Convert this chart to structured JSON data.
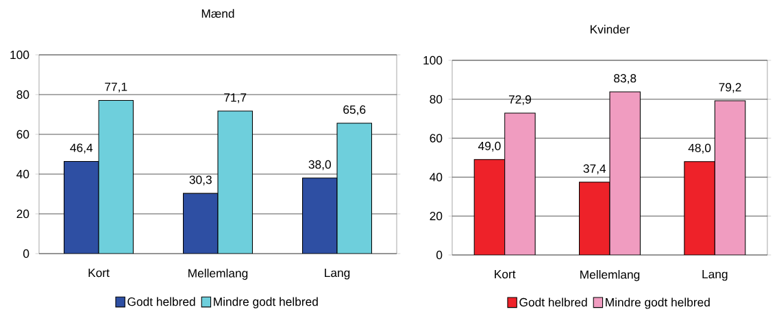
{
  "chart_data": [
    {
      "type": "bar",
      "title": "Mænd",
      "categories": [
        "Kort",
        "Mellemlang",
        "Lang"
      ],
      "series": [
        {
          "name": "Godt helbred",
          "color": "#2e4fa3",
          "values": [
            46.4,
            30.3,
            38.0
          ],
          "value_labels": [
            "46,4",
            "30,3",
            "38,0"
          ]
        },
        {
          "name": "Mindre godt helbred",
          "color": "#6ecfdc",
          "values": [
            77.1,
            71.7,
            65.6
          ],
          "value_labels": [
            "77,1",
            "71,7",
            "65,6"
          ]
        }
      ],
      "ylim": [
        0,
        100
      ],
      "yticks": [
        0,
        20,
        40,
        60,
        80,
        100
      ],
      "grid": "y",
      "legend": "bottom"
    },
    {
      "type": "bar",
      "title": "Kvinder",
      "categories": [
        "Kort",
        "Mellemlang",
        "Lang"
      ],
      "series": [
        {
          "name": "Godt helbred",
          "color": "#ee2229",
          "values": [
            49.0,
            37.4,
            48.0
          ],
          "value_labels": [
            "49,0",
            "37,4",
            "48,0"
          ]
        },
        {
          "name": "Mindre godt helbred",
          "color": "#f09cc0",
          "values": [
            72.9,
            83.8,
            79.2
          ],
          "value_labels": [
            "72,9",
            "83,8",
            "79,2"
          ]
        }
      ],
      "ylim": [
        0,
        100
      ],
      "yticks": [
        0,
        20,
        40,
        60,
        80,
        100
      ],
      "grid": "y",
      "legend": "bottom"
    }
  ]
}
